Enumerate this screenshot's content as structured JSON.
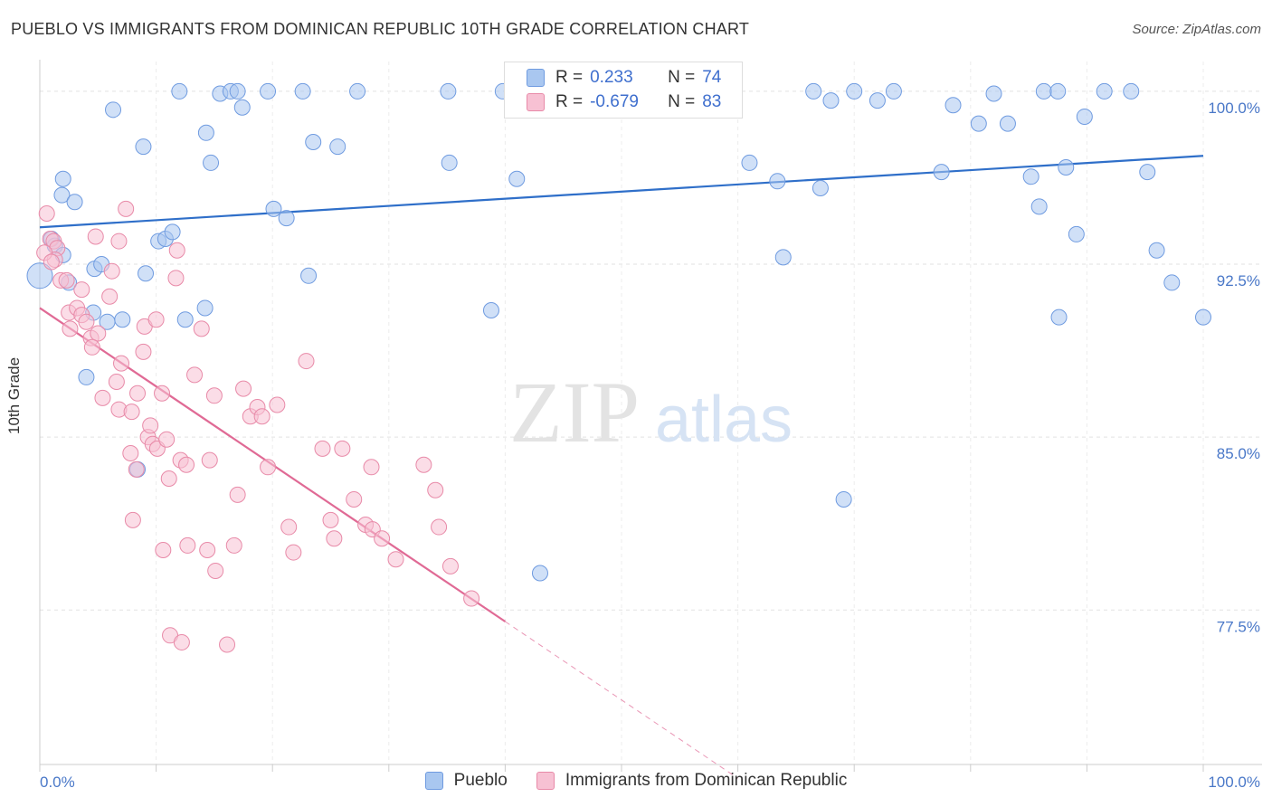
{
  "title": "PUEBLO VS IMMIGRANTS FROM DOMINICAN REPUBLIC 10TH GRADE CORRELATION CHART",
  "source": "Source: ZipAtlas.com",
  "watermark": {
    "zip": "ZIP",
    "atlas": "atlas"
  },
  "legend_top": {
    "rows": [
      {
        "r_label": "R =",
        "r_value": "0.233",
        "n_label": "N =",
        "n_value": "74",
        "color": "#a9c7f0",
        "border": "#6f9be0"
      },
      {
        "r_label": "R =",
        "r_value": "-0.679",
        "n_label": "N =",
        "n_value": "83",
        "color": "#f7c1d3",
        "border": "#e88aa8"
      }
    ]
  },
  "legend_bottom": [
    {
      "label": "Pueblo",
      "color": "#a9c7f0",
      "border": "#6f9be0"
    },
    {
      "label": "Immigrants from Dominican Republic",
      "color": "#f7c1d3",
      "border": "#e88aa8"
    }
  ],
  "chart_data": {
    "type": "scatter",
    "title": "PUEBLO VS IMMIGRANTS FROM DOMINICAN REPUBLIC 10TH GRADE CORRELATION CHART",
    "xlabel": "",
    "ylabel": "10th Grade",
    "xlim": [
      0,
      100
    ],
    "ylim": [
      70.8,
      100.9
    ],
    "x_tick_labels": [
      "0.0%",
      "100.0%"
    ],
    "y_ticks": [
      77.5,
      85.0,
      92.5,
      100.0
    ],
    "y_tick_labels": [
      "77.5%",
      "85.0%",
      "92.5%",
      "100.0%"
    ],
    "grid": true,
    "legend_position": "top-center",
    "series": [
      {
        "name": "Pueblo",
        "color": "#a9c7f0",
        "stroke": "#6f9be0",
        "trend": {
          "x0": 0,
          "y0": 94.1,
          "x1": 100,
          "y1": 97.2,
          "color": "#2f6fc9"
        },
        "points": [
          [
            6.3,
            99.2
          ],
          [
            12.0,
            100.0
          ],
          [
            15.5,
            99.9
          ],
          [
            16.4,
            100.0
          ],
          [
            17.0,
            100.0
          ],
          [
            17.4,
            99.3
          ],
          [
            19.6,
            100.0
          ],
          [
            22.6,
            100.0
          ],
          [
            27.3,
            100.0
          ],
          [
            35.1,
            100.0
          ],
          [
            39.8,
            100.0
          ],
          [
            8.9,
            97.6
          ],
          [
            14.3,
            98.2
          ],
          [
            14.7,
            96.9
          ],
          [
            23.5,
            97.8
          ],
          [
            25.6,
            97.6
          ],
          [
            35.2,
            96.9
          ],
          [
            41.0,
            96.2
          ],
          [
            2.0,
            96.2
          ],
          [
            1.9,
            95.5
          ],
          [
            3.0,
            95.2
          ],
          [
            20.1,
            94.9
          ],
          [
            21.2,
            94.5
          ],
          [
            1.0,
            93.6
          ],
          [
            1.3,
            93.3
          ],
          [
            2.0,
            92.9
          ],
          [
            10.2,
            93.5
          ],
          [
            10.8,
            93.6
          ],
          [
            11.4,
            93.9
          ],
          [
            4.7,
            92.3
          ],
          [
            5.3,
            92.5
          ],
          [
            9.1,
            92.1
          ],
          [
            0.0,
            92.0
          ],
          [
            2.5,
            91.7
          ],
          [
            23.1,
            92.0
          ],
          [
            4.6,
            90.4
          ],
          [
            5.8,
            90.0
          ],
          [
            7.1,
            90.1
          ],
          [
            12.5,
            90.1
          ],
          [
            14.2,
            90.6
          ],
          [
            38.8,
            90.5
          ],
          [
            4.0,
            87.6
          ],
          [
            8.4,
            83.6
          ],
          [
            43.0,
            79.1
          ],
          [
            46.0,
            100.0
          ],
          [
            47.5,
            100.0
          ],
          [
            66.5,
            100.0
          ],
          [
            68.0,
            99.6
          ],
          [
            70.0,
            100.0
          ],
          [
            72.0,
            99.6
          ],
          [
            73.4,
            100.0
          ],
          [
            82.0,
            99.9
          ],
          [
            86.3,
            100.0
          ],
          [
            87.5,
            100.0
          ],
          [
            91.5,
            100.0
          ],
          [
            93.8,
            100.0
          ],
          [
            78.5,
            99.4
          ],
          [
            80.7,
            98.6
          ],
          [
            83.2,
            98.6
          ],
          [
            89.8,
            98.9
          ],
          [
            61.0,
            96.9
          ],
          [
            77.5,
            96.5
          ],
          [
            67.1,
            95.8
          ],
          [
            63.4,
            96.1
          ],
          [
            88.2,
            96.7
          ],
          [
            95.2,
            96.5
          ],
          [
            85.2,
            96.3
          ],
          [
            85.9,
            95.0
          ],
          [
            89.1,
            93.8
          ],
          [
            63.9,
            92.8
          ],
          [
            96.0,
            93.1
          ],
          [
            97.3,
            91.7
          ],
          [
            87.6,
            90.2
          ],
          [
            100.0,
            90.2
          ],
          [
            69.1,
            82.3
          ]
        ]
      },
      {
        "name": "Immigrants from Dominican Republic",
        "color": "#f7c1d3",
        "stroke": "#e88aa8",
        "trend": {
          "x0": 0,
          "y0": 90.6,
          "x1": 40.0,
          "y1": 77.0,
          "dash_x1": 60.0,
          "dash_y1": 70.2,
          "color": "#e06a95"
        },
        "points": [
          [
            0.6,
            94.7
          ],
          [
            0.9,
            93.6
          ],
          [
            1.2,
            93.5
          ],
          [
            1.5,
            93.2
          ],
          [
            1.3,
            92.7
          ],
          [
            1.8,
            91.8
          ],
          [
            2.3,
            91.8
          ],
          [
            7.4,
            94.9
          ],
          [
            4.8,
            93.7
          ],
          [
            6.8,
            93.5
          ],
          [
            11.8,
            93.1
          ],
          [
            6.2,
            92.2
          ],
          [
            11.7,
            91.9
          ],
          [
            3.6,
            91.4
          ],
          [
            6.0,
            91.1
          ],
          [
            2.5,
            90.4
          ],
          [
            3.2,
            90.6
          ],
          [
            3.6,
            90.3
          ],
          [
            4.0,
            90.0
          ],
          [
            2.6,
            89.7
          ],
          [
            4.4,
            89.3
          ],
          [
            5.0,
            89.5
          ],
          [
            9.0,
            89.8
          ],
          [
            10.0,
            90.1
          ],
          [
            13.9,
            89.7
          ],
          [
            4.5,
            88.9
          ],
          [
            8.9,
            88.7
          ],
          [
            22.9,
            88.3
          ],
          [
            7.0,
            88.2
          ],
          [
            13.3,
            87.7
          ],
          [
            6.6,
            87.4
          ],
          [
            5.4,
            86.7
          ],
          [
            8.4,
            86.9
          ],
          [
            10.5,
            86.9
          ],
          [
            15.0,
            86.8
          ],
          [
            17.5,
            87.1
          ],
          [
            6.8,
            86.2
          ],
          [
            18.1,
            85.9
          ],
          [
            18.7,
            86.3
          ],
          [
            19.1,
            85.9
          ],
          [
            20.4,
            86.4
          ],
          [
            9.3,
            85.0
          ],
          [
            9.7,
            84.7
          ],
          [
            10.1,
            84.5
          ],
          [
            7.8,
            84.3
          ],
          [
            12.1,
            84.0
          ],
          [
            12.6,
            83.8
          ],
          [
            14.6,
            84.0
          ],
          [
            19.6,
            83.7
          ],
          [
            24.3,
            84.5
          ],
          [
            26.0,
            84.5
          ],
          [
            28.5,
            83.7
          ],
          [
            33.0,
            83.8
          ],
          [
            8.3,
            83.6
          ],
          [
            11.1,
            83.2
          ],
          [
            17.0,
            82.5
          ],
          [
            27.0,
            82.3
          ],
          [
            34.0,
            82.7
          ],
          [
            8.0,
            81.4
          ],
          [
            21.4,
            81.1
          ],
          [
            25.0,
            81.4
          ],
          [
            28.0,
            81.2
          ],
          [
            28.6,
            81.0
          ],
          [
            29.4,
            80.6
          ],
          [
            34.3,
            81.1
          ],
          [
            25.3,
            80.6
          ],
          [
            12.7,
            80.3
          ],
          [
            14.4,
            80.1
          ],
          [
            16.7,
            80.3
          ],
          [
            10.6,
            80.1
          ],
          [
            21.8,
            80.0
          ],
          [
            30.6,
            79.7
          ],
          [
            35.3,
            79.4
          ],
          [
            15.1,
            79.2
          ],
          [
            37.1,
            78.0
          ],
          [
            11.2,
            76.4
          ],
          [
            12.2,
            76.1
          ],
          [
            16.1,
            76.0
          ],
          [
            9.5,
            85.5
          ],
          [
            10.9,
            84.9
          ],
          [
            7.9,
            86.1
          ],
          [
            0.4,
            93.0
          ],
          [
            1.0,
            92.6
          ]
        ]
      }
    ]
  }
}
